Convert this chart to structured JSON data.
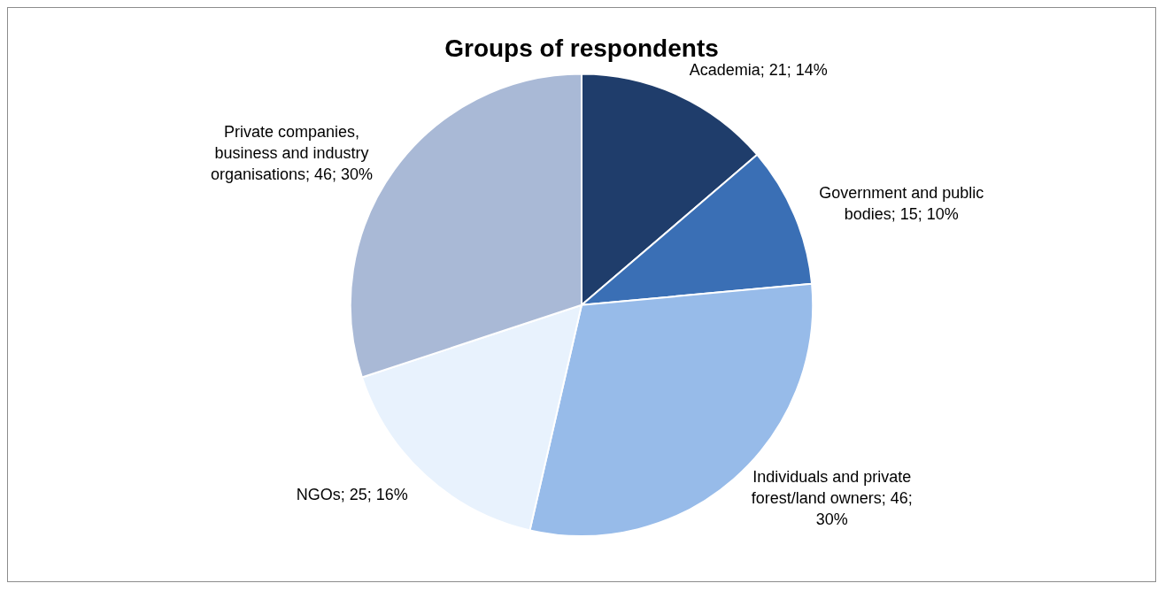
{
  "chart_data": {
    "type": "pie",
    "title": "Groups of respondents",
    "categories": [
      "Academia",
      "Government and public bodies",
      "Individuals and private forest/land owners",
      "NGOs",
      "Private companies, business and industry organisations"
    ],
    "values": [
      21,
      15,
      46,
      25,
      46
    ],
    "value_labels": [
      "21; 14%",
      "15; 10%",
      "46; 30%",
      "25; 16%",
      "46; 30%"
    ],
    "colors": [
      "#1f3d6b",
      "#3a6fb5",
      "#97bbe9",
      "#e8f2fd",
      "#a9b9d6"
    ],
    "legend": false
  }
}
